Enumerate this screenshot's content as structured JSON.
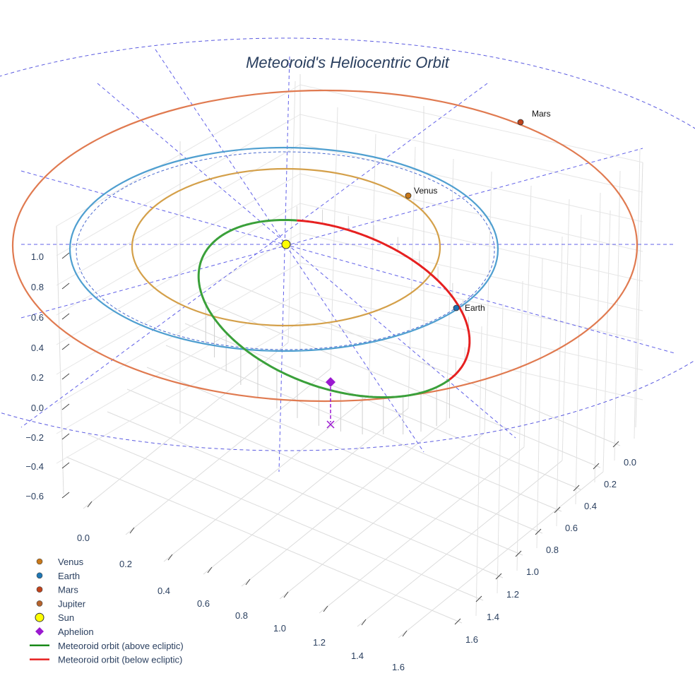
{
  "chart_data": {
    "type": "scatter3d",
    "title": "Meteoroid's Heliocentric Orbit",
    "axes": {
      "x": {
        "ticks": [
          "0.0",
          "0.2",
          "0.4",
          "0.6",
          "0.8",
          "1.0",
          "1.2",
          "1.4",
          "1.6"
        ]
      },
      "y": {
        "ticks": [
          "0.0",
          "0.2",
          "0.4",
          "0.6",
          "0.8",
          "1.0",
          "1.2",
          "1.4",
          "1.6"
        ]
      },
      "z": {
        "ticks": [
          "1.0",
          "0.8",
          "0.6",
          "0.4",
          "0.2",
          "0.0",
          "−0.2",
          "−0.4",
          "−0.6"
        ]
      }
    },
    "planets": [
      {
        "name": "Venus",
        "orbit_radius_au": 0.72,
        "label": "Venus",
        "color": "#d4a04a",
        "marker_color": "#c8781a"
      },
      {
        "name": "Earth",
        "orbit_radius_au": 1.0,
        "label": "Earth",
        "color": "#4f9fd0",
        "marker_color": "#1f6fb4"
      },
      {
        "name": "Mars",
        "orbit_radius_au": 1.52,
        "label": "Mars",
        "color": "#e07a50",
        "marker_color": "#c0431c"
      }
    ],
    "meteoroid_orbit": {
      "above_ecliptic_color": "#3aa03a",
      "below_ecliptic_color": "#e62020",
      "aphelion_color": "#9b19d0"
    },
    "sun": {
      "label": "Sun",
      "color": "#ffff00"
    },
    "legend": [
      {
        "label": "Venus",
        "symbol": "dot",
        "color": "#c8781a"
      },
      {
        "label": "Earth",
        "symbol": "dot",
        "color": "#1f77b4"
      },
      {
        "label": "Mars",
        "symbol": "dot",
        "color": "#c0431c"
      },
      {
        "label": "Jupiter",
        "symbol": "dot",
        "color": "#b5622c"
      },
      {
        "label": "Sun",
        "symbol": "big-dot",
        "color": "#ffff00"
      },
      {
        "label": "Aphelion",
        "symbol": "diamond",
        "color": "#9b19d0"
      },
      {
        "label": "Meteoroid orbit (above ecliptic)",
        "symbol": "line",
        "color": "#1a8a1a"
      },
      {
        "label": "Meteoroid orbit (below ecliptic)",
        "symbol": "line",
        "color": "#e62020"
      }
    ]
  }
}
